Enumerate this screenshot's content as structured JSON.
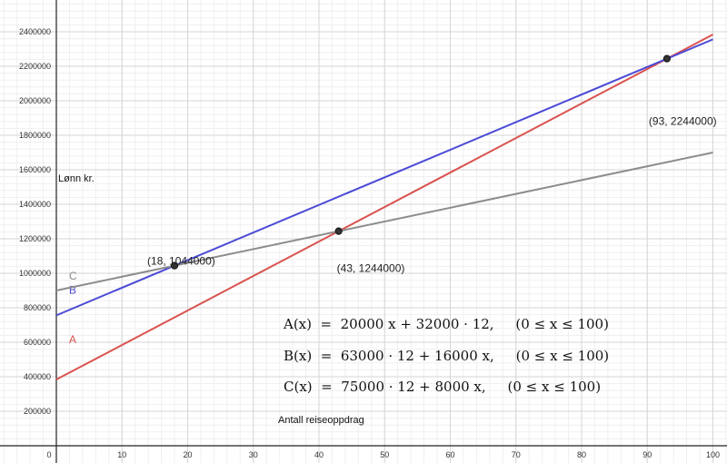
{
  "chart_data": {
    "type": "line",
    "title": "",
    "xlabel": "Antall reiseoppdrag",
    "ylabel": "Lønn kr.",
    "xlim": [
      0,
      100
    ],
    "ylim": [
      0,
      2400000
    ],
    "x_ticks": [
      0,
      10,
      20,
      30,
      40,
      50,
      60,
      70,
      80,
      90,
      100
    ],
    "y_ticks": [
      200000,
      400000,
      600000,
      800000,
      1000000,
      1200000,
      1400000,
      1600000,
      1800000,
      2000000,
      2200000,
      2400000
    ],
    "grid": true,
    "series": [
      {
        "name": "A",
        "color": "#d9534f",
        "x": [
          0,
          100
        ],
        "y": [
          384000,
          2384000
        ]
      },
      {
        "name": "B",
        "color": "#4a4ad6",
        "x": [
          0,
          100
        ],
        "y": [
          756000,
          2356000
        ]
      },
      {
        "name": "C",
        "color": "#8c8c8c",
        "x": [
          0,
          100
        ],
        "y": [
          900000,
          1700000
        ]
      }
    ],
    "points": [
      {
        "x": 18,
        "y": 1044000,
        "label": "(18, 1044000)"
      },
      {
        "x": 43,
        "y": 1244000,
        "label": "(43, 1244000)"
      },
      {
        "x": 93,
        "y": 2244000,
        "label": "(93, 2244000)"
      }
    ],
    "equations": [
      "A(x)  =  20000 x + 32000 · 12,     (0 ≤ x ≤ 100)",
      "B(x)  =  63000 · 12 + 16000 x,     (0 ≤ x ≤ 100)",
      "C(x)  =  75000 · 12 + 8000 x,     (0 ≤ x ≤ 100)"
    ]
  }
}
